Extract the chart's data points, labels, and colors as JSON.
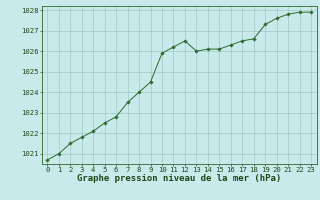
{
  "x": [
    0,
    1,
    2,
    3,
    4,
    5,
    6,
    7,
    8,
    9,
    10,
    11,
    12,
    13,
    14,
    15,
    16,
    17,
    18,
    19,
    20,
    21,
    22,
    23
  ],
  "y": [
    1020.7,
    1021.0,
    1021.5,
    1021.8,
    1022.1,
    1022.5,
    1022.8,
    1023.5,
    1024.0,
    1024.5,
    1025.9,
    1026.2,
    1026.5,
    1026.0,
    1026.1,
    1026.1,
    1026.3,
    1026.5,
    1026.6,
    1027.3,
    1027.6,
    1027.8,
    1027.9,
    1027.9
  ],
  "ylim": [
    1020.5,
    1028.2
  ],
  "yticks": [
    1021,
    1022,
    1023,
    1024,
    1025,
    1026,
    1027,
    1028
  ],
  "xlim": [
    -0.5,
    23.5
  ],
  "xticks": [
    0,
    1,
    2,
    3,
    4,
    5,
    6,
    7,
    8,
    9,
    10,
    11,
    12,
    13,
    14,
    15,
    16,
    17,
    18,
    19,
    20,
    21,
    22,
    23
  ],
  "line_color": "#2d6a2d",
  "marker": "D",
  "marker_size": 1.8,
  "bg_color": "#c8eaea",
  "grid_color": "#a0c8c8",
  "xlabel": "Graphe pression niveau de la mer (hPa)",
  "xlabel_color": "#1a4a1a",
  "xlabel_fontsize": 6.5,
  "tick_fontsize": 5.2,
  "tick_color": "#1a4a1a",
  "axis_color": "#2d6a2d",
  "figsize": [
    3.2,
    2.0
  ],
  "dpi": 100
}
